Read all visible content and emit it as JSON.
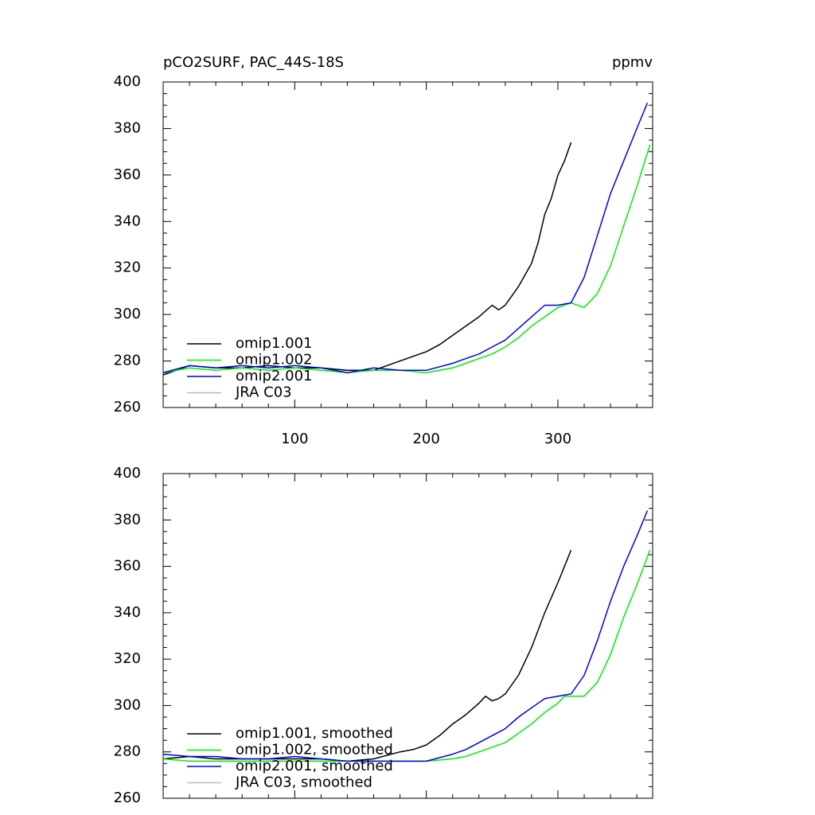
{
  "header": {
    "left": "pCO2SURF, PAC_44S-18S",
    "right": "ppmv"
  },
  "colors": {
    "omip1_001": "#000000",
    "omip1_002": "#00ee00",
    "omip2_001": "#0000ee",
    "jra_c03": "#bbbbbb"
  },
  "chart_data": [
    {
      "type": "line",
      "title": "pCO2SURF, PAC_44S-18S",
      "units": "ppmv",
      "xlim": [
        0,
        372
      ],
      "ylim": [
        260,
        400
      ],
      "xticks": [
        100,
        200,
        300
      ],
      "yticks": [
        260,
        280,
        300,
        320,
        340,
        360,
        380,
        400
      ],
      "legend_position": "bottom-left",
      "series": [
        {
          "name": "omip1.001",
          "color": "#000000",
          "x": [
            0,
            20,
            40,
            60,
            80,
            100,
            120,
            140,
            160,
            170,
            180,
            190,
            200,
            210,
            220,
            230,
            240,
            250,
            255,
            260,
            270,
            280,
            285,
            290,
            295,
            300,
            305,
            310
          ],
          "y": [
            274,
            278,
            277,
            277,
            278,
            277,
            277,
            276,
            276,
            278,
            280,
            282,
            284,
            287,
            291,
            295,
            299,
            304,
            302,
            304,
            312,
            322,
            331,
            343,
            350,
            360,
            366,
            374
          ]
        },
        {
          "name": "omip1.002",
          "color": "#00ee00",
          "x": [
            0,
            20,
            40,
            60,
            80,
            100,
            120,
            140,
            160,
            180,
            200,
            220,
            230,
            240,
            250,
            260,
            270,
            280,
            290,
            300,
            310,
            320,
            330,
            340,
            350,
            360,
            370
          ],
          "y": [
            275,
            277,
            276,
            277,
            276,
            277,
            276,
            275,
            276,
            276,
            275,
            277,
            279,
            281,
            283,
            286,
            290,
            295,
            299,
            303,
            305,
            303,
            309,
            321,
            338,
            355,
            373
          ]
        },
        {
          "name": "omip2.001",
          "color": "#0000ee",
          "x": [
            0,
            20,
            40,
            60,
            80,
            100,
            120,
            140,
            160,
            180,
            200,
            220,
            230,
            240,
            250,
            260,
            270,
            280,
            290,
            300,
            310,
            320,
            330,
            340,
            350,
            360,
            368
          ],
          "y": [
            275,
            278,
            277,
            278,
            277,
            278,
            277,
            275,
            277,
            276,
            276,
            279,
            281,
            283,
            286,
            289,
            294,
            299,
            304,
            304,
            305,
            316,
            334,
            352,
            366,
            380,
            391
          ]
        },
        {
          "name": "JRA C03",
          "color": "#bbbbbb",
          "x": [],
          "y": []
        }
      ]
    },
    {
      "type": "line",
      "xlim": [
        0,
        372
      ],
      "ylim": [
        260,
        400
      ],
      "yticks": [
        260,
        280,
        300,
        320,
        340,
        360,
        380,
        400
      ],
      "legend_position": "bottom-left",
      "series": [
        {
          "name": "omip1.001, smoothed",
          "color": "#000000",
          "x": [
            0,
            20,
            40,
            60,
            80,
            100,
            120,
            140,
            160,
            180,
            190,
            200,
            210,
            220,
            230,
            240,
            245,
            250,
            255,
            260,
            270,
            280,
            290,
            300,
            310
          ],
          "y": [
            277,
            278,
            277,
            277,
            277,
            277,
            277,
            276,
            277,
            280,
            281,
            283,
            287,
            292,
            296,
            301,
            304,
            302,
            303,
            305,
            313,
            325,
            340,
            353,
            367
          ]
        },
        {
          "name": "omip1.002, smoothed",
          "color": "#00ee00",
          "x": [
            0,
            20,
            40,
            60,
            80,
            100,
            120,
            140,
            160,
            180,
            200,
            220,
            230,
            240,
            250,
            260,
            270,
            280,
            290,
            300,
            305,
            310,
            320,
            330,
            340,
            350,
            360,
            370
          ],
          "y": [
            277,
            276,
            276,
            276,
            276,
            276,
            276,
            276,
            276,
            276,
            276,
            277,
            278,
            280,
            282,
            284,
            288,
            292,
            297,
            301,
            304,
            304,
            304,
            310,
            322,
            338,
            352,
            367
          ]
        },
        {
          "name": "omip2.001, smoothed",
          "color": "#0000ee",
          "x": [
            0,
            20,
            40,
            60,
            80,
            100,
            120,
            140,
            160,
            180,
            200,
            220,
            230,
            240,
            250,
            260,
            270,
            280,
            290,
            300,
            310,
            320,
            330,
            340,
            350,
            360,
            368
          ],
          "y": [
            279,
            278,
            278,
            277,
            277,
            278,
            277,
            276,
            276,
            276,
            276,
            279,
            281,
            284,
            287,
            290,
            295,
            299,
            303,
            304,
            305,
            313,
            328,
            345,
            360,
            373,
            384
          ]
        },
        {
          "name": "JRA C03, smoothed",
          "color": "#bbbbbb",
          "x": [],
          "y": []
        }
      ]
    }
  ]
}
